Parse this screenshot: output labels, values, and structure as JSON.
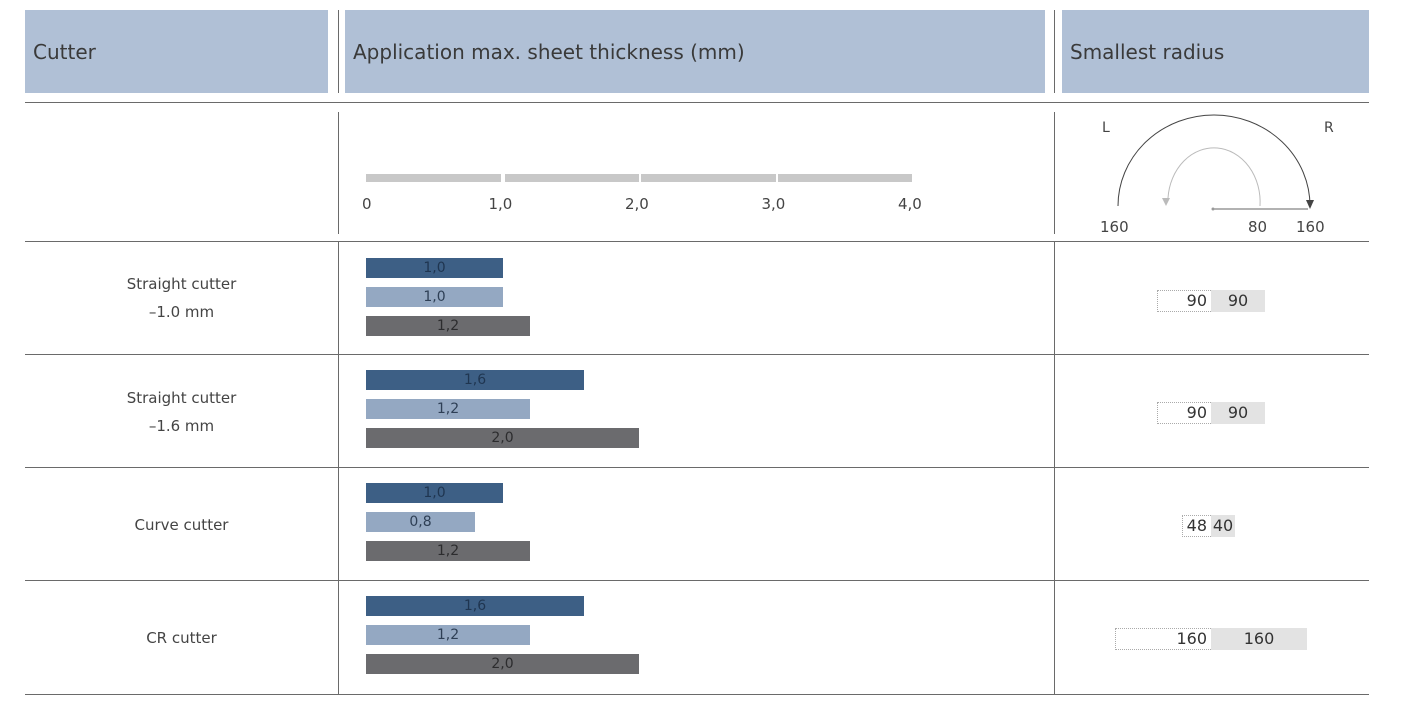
{
  "headers": {
    "cutter": "Cutter",
    "application": "Application max. sheet thickness (mm)",
    "radius": "Smallest radius"
  },
  "colors": {
    "header_bg": "#b0c0d6",
    "series_steel": "#3d5f85",
    "series_aluminium": "#94a8c2",
    "series_other": "#6b6b6e",
    "scale_bar": "#c8c8c8"
  },
  "scale": {
    "ticks": [
      "0",
      "1,0",
      "2,0",
      "3,0",
      "4,0"
    ],
    "max": 4.0
  },
  "radius_diagram": {
    "left_label": "L",
    "right_label": "R",
    "bottom_left": "160",
    "bottom_mid": "80",
    "bottom_right": "160"
  },
  "chart_data": {
    "type": "bar",
    "orientation": "horizontal",
    "xlim": [
      0,
      4.0
    ],
    "categories": [
      "Straight cutter –1.0 mm",
      "Straight cutter –1.6 mm",
      "Curve cutter",
      "CR cutter"
    ],
    "series": [
      {
        "values": [
          1.0,
          1.6,
          1.0,
          1.6
        ]
      },
      {
        "values": [
          1.0,
          1.2,
          0.8,
          1.2
        ]
      },
      {
        "values": [
          1.2,
          2.0,
          1.2,
          2.0
        ]
      }
    ]
  },
  "rows": [
    {
      "label_line1": "Straight cutter",
      "label_line2": "–1.0 mm",
      "bars": [
        {
          "value": 1.0,
          "label": "1,0"
        },
        {
          "value": 1.0,
          "label": "1,0"
        },
        {
          "value": 1.2,
          "label": "1,2"
        }
      ],
      "radius": {
        "left": 90,
        "right": 90,
        "left_label": "90",
        "right_label": "90"
      }
    },
    {
      "label_line1": "Straight cutter",
      "label_line2": "–1.6 mm",
      "bars": [
        {
          "value": 1.6,
          "label": "1,6"
        },
        {
          "value": 1.2,
          "label": "1,2"
        },
        {
          "value": 2.0,
          "label": "2,0"
        }
      ],
      "radius": {
        "left": 90,
        "right": 90,
        "left_label": "90",
        "right_label": "90"
      }
    },
    {
      "label_line1": "Curve cutter",
      "label_line2": "",
      "bars": [
        {
          "value": 1.0,
          "label": "1,0"
        },
        {
          "value": 0.8,
          "label": "0,8"
        },
        {
          "value": 1.2,
          "label": "1,2"
        }
      ],
      "radius": {
        "left": 48,
        "right": 40,
        "left_label": "48",
        "right_label": "40"
      }
    },
    {
      "label_line1": "CR cutter",
      "label_line2": "",
      "bars": [
        {
          "value": 1.6,
          "label": "1,6"
        },
        {
          "value": 1.2,
          "label": "1,2"
        },
        {
          "value": 2.0,
          "label": "2,0"
        }
      ],
      "radius": {
        "left": 160,
        "right": 160,
        "left_label": "160",
        "right_label": "160"
      }
    }
  ]
}
